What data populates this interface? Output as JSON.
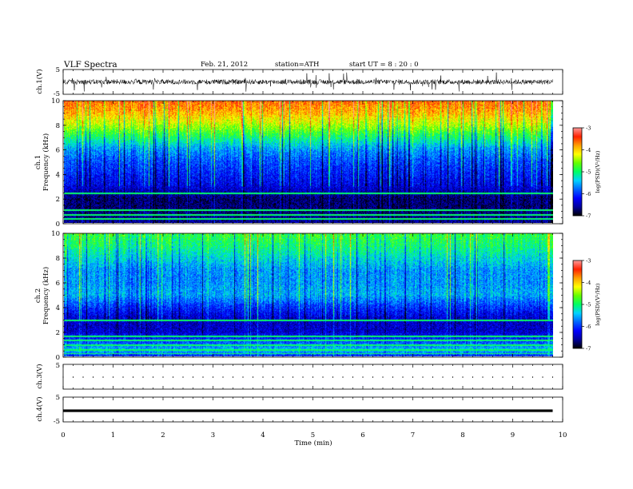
{
  "header": {
    "title": "VLF  Spectra",
    "date": "Feb. 21, 2012",
    "station": "station=ATH",
    "start": "start  UT  =    8  : 20 : 0"
  },
  "chart_data": [
    {
      "type": "line",
      "panel": "ch1-waveform",
      "ylabel": "ch.1(V)",
      "ylim": [
        -5,
        5
      ],
      "yticks": [
        "5",
        "-5"
      ],
      "xlim": [
        0,
        10
      ],
      "x_end": 9.8,
      "signal_baseline": 0,
      "signal_noise_band": [
        -1,
        1
      ]
    },
    {
      "type": "heatmap",
      "panel": "ch1-spectrogram",
      "ylabel_line1": "ch.1",
      "ylabel_line2": "Frequency  (kHz)",
      "ylim": [
        0,
        10
      ],
      "yticks": [
        "0",
        "2",
        "4",
        "6",
        "8",
        "10"
      ],
      "xlim": [
        0,
        10
      ],
      "x_end": 9.8,
      "colorbar": {
        "label": "log(PSD)(V²/Hz)",
        "range": [
          -7,
          -3
        ],
        "ticks": [
          "-3",
          "-4",
          "-5",
          "-6",
          "-7"
        ],
        "colors": [
          "#000000",
          "#00009c",
          "#0000ff",
          "#0064ff",
          "#00d2ff",
          "#00ff64",
          "#64ff00",
          "#ffff00",
          "#ffa000",
          "#ff2000",
          "#ff9a9a"
        ]
      },
      "psd_profile_khz": [
        0,
        0.5,
        1,
        2,
        3,
        4,
        5,
        6,
        7,
        8,
        9,
        10
      ],
      "psd_profile_log": [
        -6.6,
        -6.6,
        -6.7,
        -6.7,
        -6.3,
        -6.1,
        -5.9,
        -5.6,
        -5.0,
        -4.4,
        -3.9,
        -3.6
      ]
    },
    {
      "type": "heatmap",
      "panel": "ch2-spectrogram",
      "ylabel_line1": "ch.2",
      "ylabel_line2": "Frequency  (kHz)",
      "ylim": [
        0,
        10
      ],
      "yticks": [
        "0",
        "2",
        "4",
        "6",
        "8",
        "10"
      ],
      "xlim": [
        0,
        10
      ],
      "x_end": 9.8,
      "colorbar": {
        "label": "log(PSD)(V²/Hz)",
        "range": [
          -7,
          -3
        ],
        "ticks": [
          "-3",
          "-4",
          "-5",
          "-6",
          "-7"
        ]
      },
      "psd_profile_khz": [
        0,
        0.5,
        1,
        2,
        3,
        4,
        5,
        6,
        7,
        8,
        9,
        10
      ],
      "psd_profile_log": [
        -6.0,
        -5.4,
        -5.8,
        -6.4,
        -6.4,
        -6.0,
        -5.5,
        -5.6,
        -5.6,
        -5.3,
        -5.0,
        -4.8
      ]
    },
    {
      "type": "line",
      "panel": "ch3-waveform",
      "ylabel": "ch.3(V)",
      "ylim": [
        -5,
        5
      ],
      "yticks": [
        "5"
      ],
      "xlim": [
        0,
        10
      ]
    },
    {
      "type": "line",
      "panel": "ch4-waveform",
      "ylabel": "ch.4(V)",
      "ylim": [
        -5,
        5
      ],
      "yticks": [
        "5",
        "-5"
      ],
      "xlim": [
        0,
        10
      ],
      "x_end": 9.8,
      "signal_level": -0.5,
      "xlabel": "Time  (min)",
      "xticks": [
        "0",
        "1",
        "2",
        "3",
        "4",
        "5",
        "6",
        "7",
        "8",
        "9",
        "10"
      ]
    }
  ]
}
